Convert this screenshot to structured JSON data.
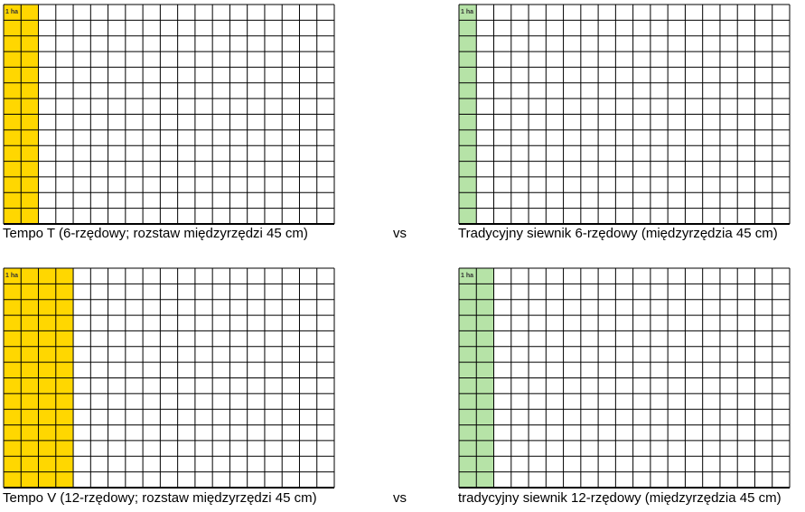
{
  "panels": [
    {
      "id": "tempo-t",
      "caption": "Tempo T (6-rzędowy; rozstaw międzyrzędzi 45 cm)",
      "cell_label": "1 ha",
      "highlight_color": "#FFD700",
      "highlight_columns": 2,
      "rows": 14,
      "cols": 19
    },
    {
      "id": "traditional-6",
      "caption": "Tradycyjny siewnik 6-rzędowy (międzyrzędzia 45 cm)",
      "cell_label": "1 ha",
      "highlight_color": "#B6E3A7",
      "highlight_columns": 1,
      "rows": 14,
      "cols": 19
    },
    {
      "id": "tempo-v",
      "caption": "Tempo V (12-rzędowy; rozstaw międzyrzędzi 45 cm)",
      "cell_label": "1 ha",
      "highlight_color": "#FFD700",
      "highlight_columns": 4,
      "rows": 14,
      "cols": 19
    },
    {
      "id": "traditional-12",
      "caption": "tradycyjny siewnik 12-rzędowy (międzyrzędzia 45 cm)",
      "cell_label": "1 ha",
      "highlight_color": "#B6E3A7",
      "highlight_columns": 2,
      "rows": 14,
      "cols": 19
    }
  ],
  "vs_labels": [
    "vs",
    "vs"
  ]
}
